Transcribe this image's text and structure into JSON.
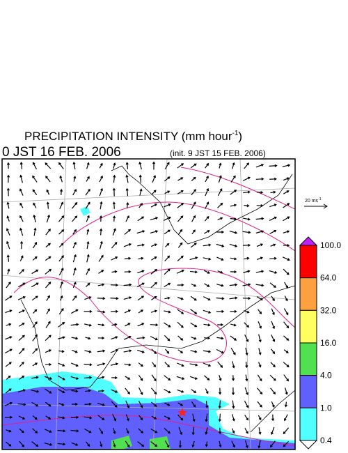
{
  "header": {
    "title": "PRECIPITATION INTENSITY (mm hour",
    "title_exponent": "-1",
    "title_close": ")",
    "valid_time": "0 JST 16 FEB. 2006",
    "init_time": "(init. 9 JST 15 FEB. 2006)"
  },
  "wind_scale": {
    "label": "20 ms",
    "exponent": "-1"
  },
  "colorbar": {
    "levels": [
      "100.0",
      "64.0",
      "32.0",
      "16.0",
      "4.0",
      "1.0",
      "0.4"
    ],
    "colors": [
      "#ff0000",
      "#ffa040",
      "#ffff60",
      "#50e050",
      "#6060ff",
      "#50ffff"
    ],
    "over_color": "#c020ff",
    "under_color": "#ffffff"
  }
}
